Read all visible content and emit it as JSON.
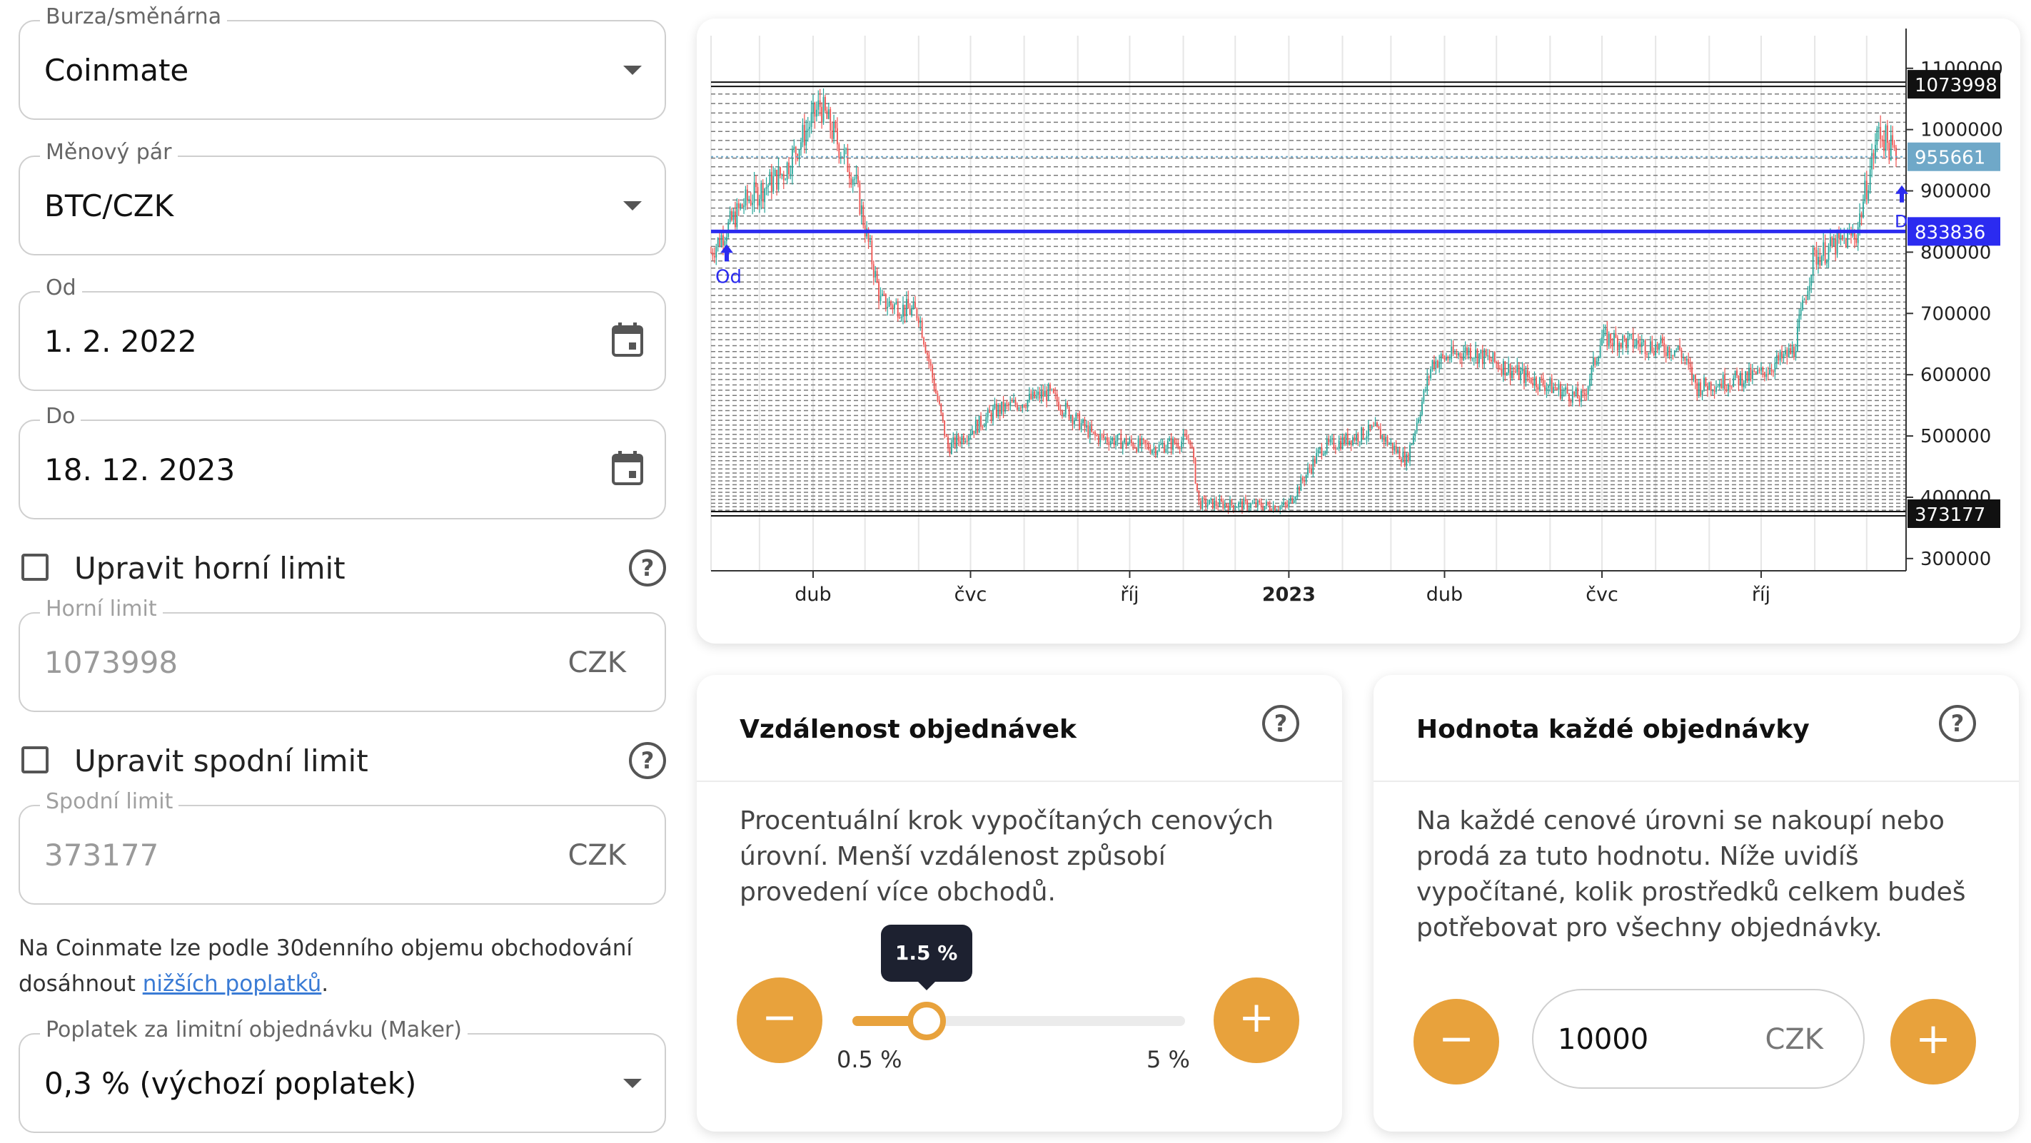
{
  "form": {
    "exchange": {
      "label": "Burza/směnárna",
      "value": "Coinmate"
    },
    "pair": {
      "label": "Měnový pár",
      "value": "BTC/CZK"
    },
    "date_from": {
      "label": "Od",
      "value": "1. 2. 2022"
    },
    "date_to": {
      "label": "Do",
      "value": "18. 12. 2023"
    },
    "upper_check": {
      "label": "Upravit horní limit",
      "checked": false
    },
    "upper_limit": {
      "label": "Horní limit",
      "value": "1073998",
      "currency": "CZK"
    },
    "lower_check": {
      "label": "Upravit spodní limit",
      "checked": false
    },
    "lower_limit": {
      "label": "Spodní limit",
      "value": "373177",
      "currency": "CZK"
    },
    "note": {
      "text": "Na Coinmate lze podle 30denního objemu obchodování dosáhnout ",
      "link": "nižších poplatků",
      "after": "."
    },
    "fee": {
      "label": "Poplatek za limitní objednávku (Maker)",
      "value": "0,3 % (výchozí poplatek)"
    }
  },
  "chart_data": {
    "type": "candlestick",
    "x_tick_labels": [
      "dub",
      "čvc",
      "říj",
      "2023",
      "dub",
      "čvc",
      "říj"
    ],
    "y_tick_labels": [
      "1100000",
      "1000000",
      "900000",
      "800000",
      "700000",
      "600000",
      "500000",
      "400000",
      "300000"
    ],
    "ylim": [
      280000,
      1130000
    ],
    "upper_limit_label": "1073998",
    "lower_limit_label": "373177",
    "current_price_label": "955661",
    "start_price_label": "833836",
    "start_marker": "Od",
    "end_marker": "Do",
    "colors": {
      "up": "#26a69a",
      "down": "#ef5350",
      "start_line": "#2b2bf0",
      "current_price": "#6fa8c8",
      "limit_line": "#111111"
    },
    "grid": true,
    "ohlc_waypoints": [
      {
        "date": "2022-02-01",
        "close": 800000
      },
      {
        "date": "2022-02-20",
        "close": 880000
      },
      {
        "date": "2022-03-15",
        "close": 930000
      },
      {
        "date": "2022-04-05",
        "close": 1040000
      },
      {
        "date": "2022-04-25",
        "close": 920000
      },
      {
        "date": "2022-05-10",
        "close": 720000
      },
      {
        "date": "2022-06-01",
        "close": 700000
      },
      {
        "date": "2022-06-18",
        "close": 480000
      },
      {
        "date": "2022-07-15",
        "close": 540000
      },
      {
        "date": "2022-08-15",
        "close": 570000
      },
      {
        "date": "2022-09-10",
        "close": 500000
      },
      {
        "date": "2022-10-15",
        "close": 480000
      },
      {
        "date": "2022-11-05",
        "close": 495000
      },
      {
        "date": "2022-11-10",
        "close": 390000
      },
      {
        "date": "2022-12-31",
        "close": 385000
      },
      {
        "date": "2023-01-20",
        "close": 480000
      },
      {
        "date": "2023-02-20",
        "close": 510000
      },
      {
        "date": "2023-03-10",
        "close": 460000
      },
      {
        "date": "2023-03-25",
        "close": 620000
      },
      {
        "date": "2023-04-15",
        "close": 640000
      },
      {
        "date": "2023-05-15",
        "close": 600000
      },
      {
        "date": "2023-06-20",
        "close": 560000
      },
      {
        "date": "2023-07-01",
        "close": 660000
      },
      {
        "date": "2023-08-15",
        "close": 640000
      },
      {
        "date": "2023-08-25",
        "close": 580000
      },
      {
        "date": "2023-09-30",
        "close": 600000
      },
      {
        "date": "2023-10-20",
        "close": 640000
      },
      {
        "date": "2023-10-31",
        "close": 790000
      },
      {
        "date": "2023-11-25",
        "close": 830000
      },
      {
        "date": "2023-12-08",
        "close": 1000000
      },
      {
        "date": "2023-12-18",
        "close": 955661
      }
    ]
  },
  "distance_card": {
    "title": "Vzdálenost objednávek",
    "description": "Procentuální krok vypočítaných cenových úrovní. Menší vzdálenost způsobí provedení více obchodů.",
    "minus": "−",
    "plus": "+",
    "value_label": "1.5 %",
    "value": 1.5,
    "min": 0.5,
    "max": 5,
    "min_label": "0.5 %",
    "max_label": "5 %"
  },
  "order_value_card": {
    "title": "Hodnota každé objednávky",
    "description": "Na každé cenové úrovni se nakoupí nebo prodá za tuto hodnotu. Níže uvidíš vypočítané, kolik prostředků celkem budeš potřebovat pro všechny objednávky.",
    "minus": "−",
    "plus": "+",
    "value": "10000",
    "currency": "CZK"
  }
}
